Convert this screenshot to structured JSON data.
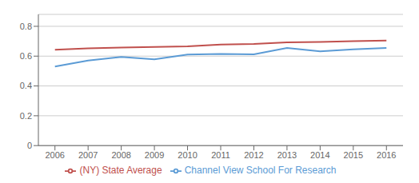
{
  "chart_data": {
    "type": "line",
    "x": [
      2006,
      2007,
      2008,
      2009,
      2010,
      2011,
      2012,
      2013,
      2014,
      2015,
      2016
    ],
    "series": [
      {
        "name": "Channel View School For Research",
        "color": "#5b9bd5",
        "values": [
          0.53,
          0.57,
          0.595,
          0.578,
          0.61,
          0.615,
          0.612,
          0.655,
          0.632,
          0.645,
          0.655
        ]
      },
      {
        "name": "(NY) State Average",
        "color": "#c0504d",
        "values": [
          0.643,
          0.652,
          0.658,
          0.662,
          0.665,
          0.678,
          0.682,
          0.692,
          0.695,
          0.7,
          0.705
        ]
      }
    ],
    "xlim": [
      2005.5,
      2016.5
    ],
    "xticks": [
      2006,
      2007,
      2008,
      2009,
      2010,
      2011,
      2012,
      2013,
      2014,
      2015,
      2016
    ],
    "ylim": [
      0,
      0.88
    ],
    "yticks": [
      0,
      0.2,
      0.4,
      0.6,
      0.8
    ],
    "grid": true,
    "legend": "bottom"
  }
}
